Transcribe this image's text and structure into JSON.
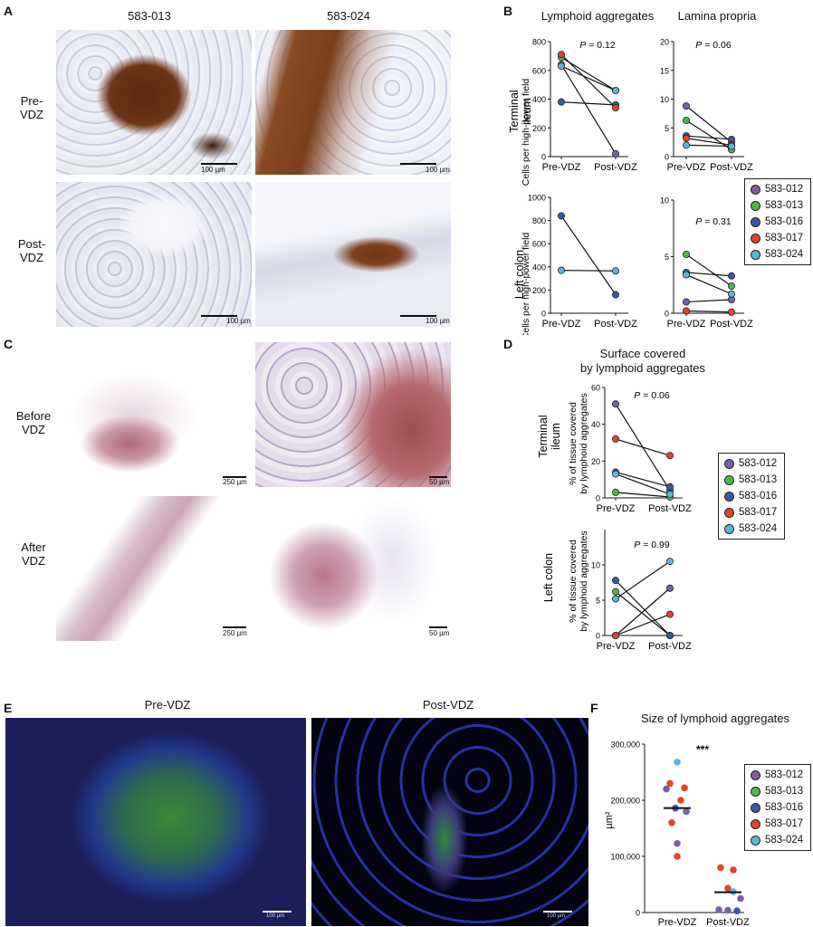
{
  "panels": {
    "A": {
      "letter": "A",
      "col1": "583-013",
      "col2": "583-024",
      "row1": "Pre-\nVDZ",
      "row2": "Post-\nVDZ",
      "scale": "100 µm"
    },
    "B": {
      "letter": "B",
      "title_left": "Lymphoid aggregates",
      "title_right": "Lamina propria",
      "row1": "Terminal\nileum",
      "row2": "Left colon",
      "ylabel": "Cells per high-power field"
    },
    "C": {
      "letter": "C",
      "row1": "Before\nVDZ",
      "row2": "After\nVDZ",
      "scale_left": "250 µm",
      "scale_right": "50 µm"
    },
    "D": {
      "letter": "D",
      "title": "Surface covered\nby lymphoid aggregates",
      "row1": "Terminal\nileum",
      "row2": "Left colon",
      "ylabel": "% of tissue covered\nby lymphoid aggregates"
    },
    "E": {
      "letter": "E",
      "left": "Pre-VDZ",
      "right": "Post-VDZ",
      "scale": "100 µm"
    },
    "F": {
      "letter": "F",
      "title": "Size of lymphoid aggregates",
      "ylabel": "µm²",
      "significance": "***"
    }
  },
  "legend": [
    {
      "label": "583-012",
      "color": "#7b5ea7"
    },
    {
      "label": "583-013",
      "color": "#4db848"
    },
    {
      "label": "583-016",
      "color": "#3a58a6"
    },
    {
      "label": "583-017",
      "color": "#e8412c"
    },
    {
      "label": "583-024",
      "color": "#5ab8d6"
    }
  ],
  "chart_data": [
    {
      "id": "B-TI-LA",
      "type": "scatter",
      "categories": [
        "Pre-VDZ",
        "Post-VDZ"
      ],
      "ylim": [
        0,
        800
      ],
      "yticks": [
        0,
        200,
        400,
        600,
        800
      ],
      "pvalue": "P = 0.12",
      "series": [
        {
          "name": "583-012",
          "values": [
            640,
            20
          ]
        },
        {
          "name": "583-013",
          "values": [
            690,
            460
          ]
        },
        {
          "name": "583-016",
          "values": [
            380,
            360
          ]
        },
        {
          "name": "583-017",
          "values": [
            710,
            340
          ]
        },
        {
          "name": "583-024",
          "values": [
            630,
            460
          ]
        }
      ]
    },
    {
      "id": "B-TI-LP",
      "type": "scatter",
      "categories": [
        "Pre-VDZ",
        "Post-VDZ"
      ],
      "ylim": [
        0,
        20
      ],
      "yticks": [
        0,
        5,
        10,
        15,
        20
      ],
      "pvalue": "P = 0.06",
      "series": [
        {
          "name": "583-012",
          "values": [
            8.8,
            2.5
          ]
        },
        {
          "name": "583-013",
          "values": [
            6.3,
            1.2
          ]
        },
        {
          "name": "583-016",
          "values": [
            3.6,
            3.0
          ]
        },
        {
          "name": "583-017",
          "values": [
            3.2,
            2.0
          ]
        },
        {
          "name": "583-024",
          "values": [
            2.0,
            1.8
          ]
        }
      ]
    },
    {
      "id": "B-LC-LA",
      "type": "scatter",
      "categories": [
        "Pre-VDZ",
        "Post-VDZ"
      ],
      "ylim": [
        0,
        1000
      ],
      "yticks": [
        0,
        200,
        400,
        600,
        800,
        1000
      ],
      "series": [
        {
          "name": "583-016",
          "values": [
            840,
            160
          ]
        },
        {
          "name": "583-024",
          "values": [
            370,
            365
          ]
        }
      ]
    },
    {
      "id": "B-LC-LP",
      "type": "scatter",
      "categories": [
        "Pre-VDZ",
        "Post-VDZ"
      ],
      "ylim": [
        0,
        10
      ],
      "yticks": [
        0,
        5,
        10
      ],
      "pvalue": "P = 0.31",
      "series": [
        {
          "name": "583-012",
          "values": [
            1.0,
            1.2
          ]
        },
        {
          "name": "583-013",
          "values": [
            5.2,
            2.4
          ]
        },
        {
          "name": "583-016",
          "values": [
            3.6,
            3.3
          ]
        },
        {
          "name": "583-017",
          "values": [
            0.2,
            0.1
          ]
        },
        {
          "name": "583-024",
          "values": [
            3.4,
            1.7
          ]
        }
      ]
    },
    {
      "id": "D-TI",
      "type": "scatter",
      "categories": [
        "Pre-VDZ",
        "Post-VDZ"
      ],
      "ylim": [
        0,
        60
      ],
      "yticks": [
        0,
        20,
        40,
        60
      ],
      "pvalue": "P = 0.06",
      "series": [
        {
          "name": "583-012",
          "values": [
            51,
            4
          ]
        },
        {
          "name": "583-013",
          "values": [
            3,
            0.5
          ]
        },
        {
          "name": "583-016",
          "values": [
            14,
            6
          ]
        },
        {
          "name": "583-017",
          "values": [
            32,
            23
          ]
        },
        {
          "name": "583-024",
          "values": [
            13,
            2
          ]
        }
      ]
    },
    {
      "id": "D-LC",
      "type": "scatter",
      "categories": [
        "Pre-VDZ",
        "Post-VDZ"
      ],
      "ylim": [
        0,
        15
      ],
      "yticks": [
        0,
        5,
        10
      ],
      "pvalue": "P = 0.99",
      "series": [
        {
          "name": "583-012",
          "values": [
            0,
            6.7
          ]
        },
        {
          "name": "583-013",
          "values": [
            6.2,
            0
          ]
        },
        {
          "name": "583-016",
          "values": [
            7.8,
            0
          ]
        },
        {
          "name": "583-017",
          "values": [
            0,
            3.0
          ]
        },
        {
          "name": "583-024",
          "values": [
            5.2,
            10.5
          ]
        }
      ]
    },
    {
      "id": "F",
      "type": "scatter",
      "categories": [
        "Pre-VDZ",
        "Post-VDZ"
      ],
      "ylim": [
        0,
        300000
      ],
      "yticks": [
        0,
        100000,
        200000,
        300000
      ],
      "yticklabels": [
        "0",
        "100,000",
        "200,000",
        "300,000"
      ],
      "medians": [
        186000,
        36000
      ],
      "points": [
        {
          "group": 0,
          "name": "583-024",
          "value": 268000
        },
        {
          "group": 0,
          "name": "583-017",
          "value": 230000
        },
        {
          "group": 0,
          "name": "583-017",
          "value": 222000
        },
        {
          "group": 0,
          "name": "583-012",
          "value": 220000
        },
        {
          "group": 0,
          "name": "583-017",
          "value": 200000
        },
        {
          "group": 0,
          "name": "583-016",
          "value": 186000
        },
        {
          "group": 0,
          "name": "583-012",
          "value": 180000
        },
        {
          "group": 0,
          "name": "583-017",
          "value": 160000
        },
        {
          "group": 0,
          "name": "583-012",
          "value": 123000
        },
        {
          "group": 0,
          "name": "583-017",
          "value": 100000
        },
        {
          "group": 1,
          "name": "583-017",
          "value": 80000
        },
        {
          "group": 1,
          "name": "583-017",
          "value": 76000
        },
        {
          "group": 1,
          "name": "583-017",
          "value": 43000
        },
        {
          "group": 1,
          "name": "583-024",
          "value": 37000
        },
        {
          "group": 1,
          "name": "583-012",
          "value": 25000
        },
        {
          "group": 1,
          "name": "583-012",
          "value": 5000
        },
        {
          "group": 1,
          "name": "583-012",
          "value": 4000
        },
        {
          "group": 1,
          "name": "583-016",
          "value": 3000
        }
      ]
    }
  ]
}
